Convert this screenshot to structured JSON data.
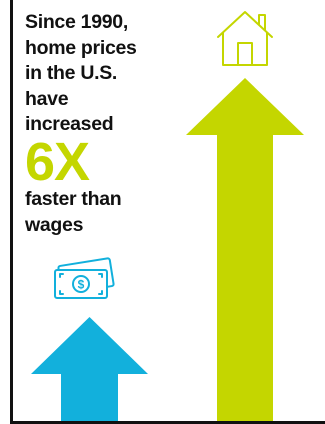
{
  "headline_lines": [
    "Since 1990,",
    "home prices",
    "in the U.S.",
    "have",
    "increased"
  ],
  "multiplier_text": "6X",
  "tail_lines": [
    "faster than",
    "wages"
  ],
  "chart_data": {
    "type": "bar",
    "categories": [
      "wages",
      "home prices"
    ],
    "values": [
      1,
      6
    ],
    "ylim": [
      0,
      6
    ]
  },
  "colors": {
    "wages": "#12b0dc",
    "home_prices": "#c4d600",
    "multiplier": "#c4d600",
    "axis": "#111111"
  },
  "icons": {
    "wages": "money-bills-icon",
    "home_prices": "house-icon"
  }
}
